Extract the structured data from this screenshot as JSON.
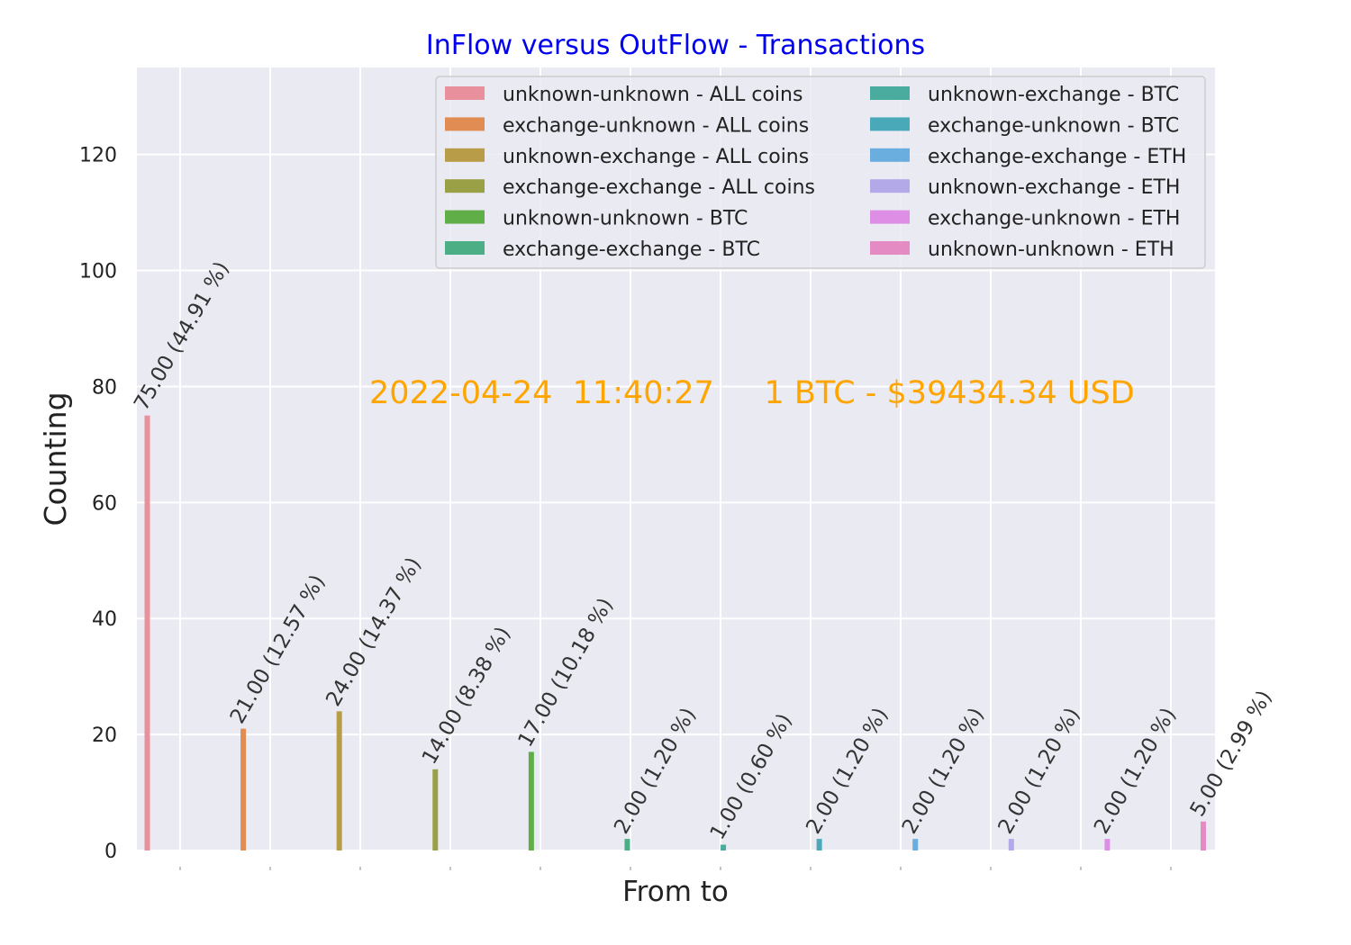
{
  "chart_data": {
    "type": "bar",
    "title": "InFlow versus OutFlow - Transactions",
    "title_color": "#0000ee",
    "annotation": "2022-04-24  11:40:27     1 BTC - $39434.34 USD",
    "annotation_color": "#ffa500",
    "xlabel": "From to",
    "ylabel": "Counting",
    "ylim": [
      0,
      135
    ],
    "yticks": [
      0,
      20,
      40,
      60,
      80,
      100,
      120
    ],
    "grid": true,
    "legend_position": "top-right",
    "series": [
      {
        "name": "unknown-unknown - ALL coins",
        "value": 75,
        "label": "75.00 (44.91 %)",
        "color": "#e8919c"
      },
      {
        "name": "exchange-unknown - ALL coins",
        "value": 21,
        "label": "21.00 (12.57 %)",
        "color": "#e08c52"
      },
      {
        "name": "unknown-exchange - ALL coins",
        "value": 24,
        "label": "24.00 (14.37 %)",
        "color": "#b89c47"
      },
      {
        "name": "exchange-exchange - ALL coins",
        "value": 14,
        "label": "14.00 (8.38 %)",
        "color": "#9aa045"
      },
      {
        "name": "unknown-unknown - BTC",
        "value": 17,
        "label": "17.00 (10.18 %)",
        "color": "#5fae48"
      },
      {
        "name": "exchange-exchange - BTC",
        "value": 2,
        "label": "2.00 (1.20 %)",
        "color": "#4cae85"
      },
      {
        "name": "unknown-exchange - BTC",
        "value": 1,
        "label": "1.00 (0.60 %)",
        "color": "#4aac9f"
      },
      {
        "name": "exchange-unknown - BTC",
        "value": 2,
        "label": "2.00 (1.20 %)",
        "color": "#4aa9b8"
      },
      {
        "name": "exchange-exchange - ETH",
        "value": 2,
        "label": "2.00 (1.20 %)",
        "color": "#6aaee0"
      },
      {
        "name": "unknown-exchange - ETH",
        "value": 2,
        "label": "2.00 (1.20 %)",
        "color": "#b3a8e8"
      },
      {
        "name": "exchange-unknown - ETH",
        "value": 2,
        "label": "2.00 (1.20 %)",
        "color": "#df8ee6"
      },
      {
        "name": "unknown-unknown - ETH",
        "value": 5,
        "label": "5.00 (2.99 %)",
        "color": "#e58bc3"
      }
    ]
  }
}
